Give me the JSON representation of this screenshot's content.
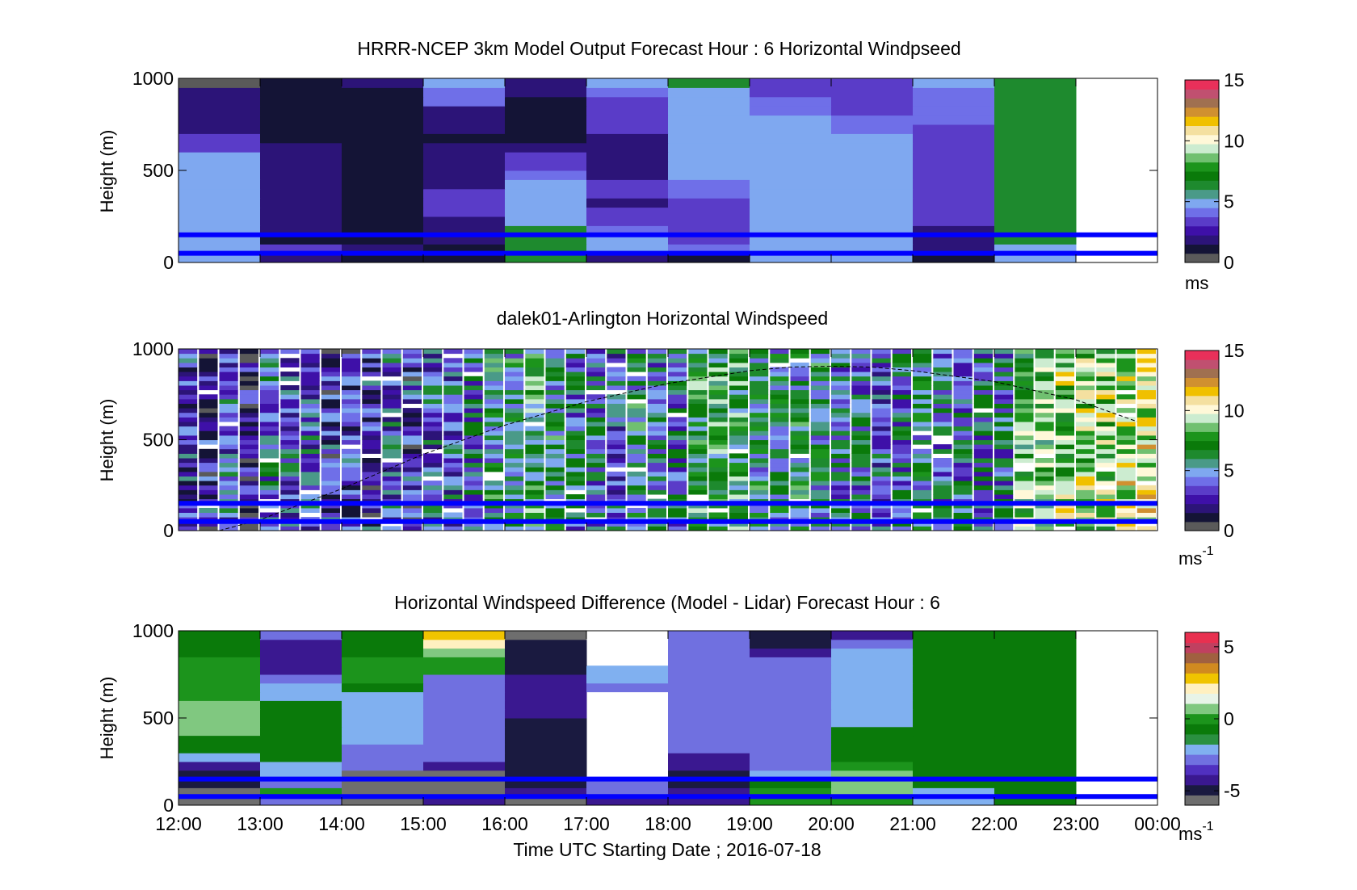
{
  "colors": {
    "speed_scale": [
      "#5a5a5a",
      "#141436",
      "#2c1478",
      "#3e10a8",
      "#5a3cc8",
      "#6f6fe8",
      "#7fa8f0",
      "#4a9a88",
      "#1e8a2e",
      "#0a7a0a",
      "#1c941c",
      "#70c070",
      "#ccecd0",
      "#fff8d8",
      "#f4e0a0",
      "#f0c000",
      "#d09030",
      "#a07050",
      "#c05070",
      "#e8305a"
    ],
    "diff_scale": [
      "#6e6e6e",
      "#1a1a40",
      "#3a1890",
      "#5030c0",
      "#7070e0",
      "#80b0f0",
      "#2a9040",
      "#0a7a0a",
      "#1c941c",
      "#80c880",
      "#e8f4e8",
      "#fff0c0",
      "#f0c400",
      "#d08a20",
      "#a06040",
      "#c04060",
      "#e83050"
    ],
    "overlay_line": "#0000ff"
  },
  "chart_data": [
    {
      "type": "heatmap",
      "title": "HRRR-NCEP 3km Model Output   Forecast Hour : 6 Horizontal Windpseed",
      "xlabel": "",
      "ylabel": "Height (m)",
      "x": [
        "12:00",
        "13:00",
        "14:00",
        "15:00",
        "16:00",
        "17:00",
        "18:00",
        "19:00",
        "20:00",
        "21:00",
        "22:00",
        "23:00"
      ],
      "xlim": [
        "12:00",
        "00:00"
      ],
      "ylim": [
        0,
        1000
      ],
      "yticks": [
        0,
        500,
        1000
      ],
      "y": [
        25,
        75,
        125,
        175,
        225,
        275,
        325,
        375,
        425,
        475,
        525,
        575,
        625,
        675,
        725,
        775,
        825,
        875,
        925,
        975
      ],
      "values": [
        [
          5,
          2,
          1,
          1,
          6,
          2,
          1,
          5,
          5,
          1,
          5,
          null
        ],
        [
          5,
          3,
          2,
          1,
          6,
          5,
          4,
          5,
          5,
          2,
          5,
          null
        ],
        [
          5,
          1,
          1,
          2,
          6,
          5,
          3,
          5,
          5,
          2,
          6,
          null
        ],
        [
          5,
          2,
          1,
          2,
          6,
          4,
          3,
          5,
          5,
          2,
          6,
          null
        ],
        [
          5,
          2,
          1,
          2,
          5,
          3,
          3,
          5,
          5,
          3,
          6,
          null
        ],
        [
          5,
          2,
          1,
          3,
          5,
          3,
          3,
          5,
          5,
          3,
          6,
          null
        ],
        [
          5,
          2,
          1,
          3,
          5,
          2,
          3,
          5,
          5,
          3,
          6,
          null
        ],
        [
          5,
          2,
          1,
          3,
          5,
          3,
          4,
          5,
          5,
          3,
          6,
          null
        ],
        [
          5,
          2,
          1,
          2,
          5,
          3,
          4,
          5,
          5,
          3,
          6,
          null
        ],
        [
          5,
          2,
          1,
          2,
          4,
          2,
          5,
          5,
          5,
          3,
          6,
          null
        ],
        [
          5,
          2,
          1,
          2,
          3,
          2,
          5,
          5,
          5,
          3,
          6,
          null
        ],
        [
          5,
          2,
          1,
          2,
          3,
          2,
          5,
          5,
          5,
          3,
          6,
          null
        ],
        [
          3,
          2,
          1,
          2,
          2,
          2,
          5,
          5,
          5,
          3,
          6,
          null
        ],
        [
          3,
          1,
          1,
          1,
          1,
          2,
          5,
          5,
          5,
          3,
          6,
          null
        ],
        [
          2,
          1,
          1,
          2,
          1,
          3,
          5,
          5,
          4,
          3,
          6,
          null
        ],
        [
          2,
          1,
          1,
          2,
          1,
          3,
          5,
          5,
          4,
          4,
          6,
          null
        ],
        [
          2,
          1,
          1,
          2,
          1,
          3,
          5,
          4,
          3,
          4,
          6,
          null
        ],
        [
          2,
          1,
          1,
          4,
          1,
          3,
          5,
          4,
          3,
          4,
          6,
          null
        ],
        [
          2,
          1,
          1,
          4,
          2,
          4,
          5,
          3,
          3,
          4,
          6,
          null
        ],
        [
          0,
          1,
          2,
          5,
          2,
          5,
          6,
          3,
          3,
          5,
          6,
          null
        ]
      ],
      "colorbar": {
        "ticks": [
          0,
          5,
          10,
          15
        ],
        "range": [
          0,
          15
        ],
        "units": "ms"
      },
      "lines": [
        {
          "name": "",
          "y": 150
        },
        {
          "name": "",
          "y": 50
        }
      ]
    },
    {
      "type": "heatmap",
      "title": "dalek01-Arlington  Horizontal Windspeed",
      "xlabel": "",
      "ylabel": "Height (m)",
      "xlim": [
        "12:00",
        "00:00"
      ],
      "ylim": [
        0,
        1000
      ],
      "yticks": [
        0,
        500,
        1000
      ],
      "colorbar": {
        "ticks": [
          0,
          5,
          10,
          15
        ],
        "range": [
          0,
          15
        ],
        "units": "ms",
        "units_exponent": "-1"
      },
      "columns": 48,
      "x_start": "12:00",
      "x_end": "23:45",
      "rows": 40,
      "column_mean_speed": [
        3,
        3,
        4,
        2,
        5,
        4,
        4,
        3,
        3,
        3,
        4,
        3,
        4,
        4,
        5,
        6,
        6,
        7,
        6,
        5,
        5,
        4,
        6,
        5,
        5,
        7,
        7,
        7,
        6,
        6,
        6,
        6,
        5,
        5,
        4,
        5,
        6,
        5,
        5,
        5,
        5,
        8,
        8,
        9,
        9,
        9,
        10,
        10
      ],
      "lines": [
        {
          "name": "",
          "y": 150
        },
        {
          "name": "",
          "y": 50
        }
      ],
      "dashed_curve": {
        "x": [
          "12:30",
          "13:00",
          "14:00",
          "15:00",
          "16:00",
          "17:00",
          "18:00",
          "19:00",
          "19:30",
          "20:00",
          "20:30",
          "21:00",
          "22:00",
          "23:00",
          "23:45"
        ],
        "y": [
          0,
          60,
          230,
          420,
          580,
          710,
          810,
          880,
          900,
          905,
          900,
          880,
          820,
          720,
          600
        ]
      }
    },
    {
      "type": "heatmap",
      "title": "Horizontal Windspeed Difference (Model - Lidar) Forecast Hour : 6",
      "xlabel": "Time UTC  Starting Date ; 2016-07-18",
      "ylabel": "Height (m)",
      "x": [
        "12:00",
        "13:00",
        "14:00",
        "15:00",
        "16:00",
        "17:00",
        "18:00",
        "19:00",
        "20:00",
        "21:00",
        "22:00",
        "23:00"
      ],
      "xticks": [
        "12:00",
        "13:00",
        "14:00",
        "15:00",
        "16:00",
        "17:00",
        "18:00",
        "19:00",
        "20:00",
        "21:00",
        "22:00",
        "23:00",
        "00:00"
      ],
      "xlim": [
        "12:00",
        "00:00"
      ],
      "ylim": [
        0,
        1000
      ],
      "yticks": [
        0,
        500,
        1000
      ],
      "y": [
        25,
        75,
        125,
        175,
        225,
        275,
        325,
        375,
        425,
        475,
        525,
        575,
        625,
        675,
        725,
        775,
        825,
        875,
        925,
        975
      ],
      "values": [
        [
          -6,
          -3,
          -6,
          -4,
          -6,
          -4,
          -4,
          0,
          0,
          -2,
          -1,
          null
        ],
        [
          -6,
          0,
          -6,
          -6,
          -4,
          -3,
          -4,
          0,
          1,
          -2,
          -1,
          null
        ],
        [
          -5,
          -3,
          -6,
          -6,
          -5,
          -3,
          -5,
          -1,
          1,
          -1,
          -1,
          null
        ],
        [
          -5,
          -2,
          -6,
          -6,
          -5,
          null,
          -5,
          -2,
          1,
          -1,
          -1,
          null
        ],
        [
          -4,
          -2,
          -3,
          -4,
          -5,
          null,
          -4,
          -3,
          0,
          -1,
          -1,
          null
        ],
        [
          -2,
          -1,
          -3,
          -3,
          -5,
          null,
          -4,
          -3,
          -1,
          -1,
          -1,
          null
        ],
        [
          -1,
          -1,
          -3,
          -3,
          -5,
          null,
          -3,
          -3,
          -1,
          -1,
          -1,
          null
        ],
        [
          -1,
          -1,
          -2,
          -3,
          -5,
          null,
          -3,
          -3,
          -1,
          -1,
          -1,
          null
        ],
        [
          1,
          -1,
          -2,
          -3,
          -5,
          null,
          -3,
          -3,
          -1,
          -1,
          -1,
          null
        ],
        [
          1,
          -1,
          -2,
          -3,
          -5,
          null,
          -3,
          -3,
          -2,
          -1,
          -1,
          null
        ],
        [
          1,
          -1,
          -2,
          -3,
          -4,
          null,
          -3,
          -3,
          -2,
          -1,
          -1,
          null
        ],
        [
          1,
          -1,
          -2,
          -3,
          -4,
          null,
          -3,
          -3,
          -2,
          -1,
          -1,
          null
        ],
        [
          0,
          -2,
          -2,
          -3,
          -4,
          null,
          -3,
          -3,
          -2,
          -1,
          -1,
          null
        ],
        [
          0,
          -2,
          -1,
          -3,
          -4,
          -3,
          -3,
          -3,
          -2,
          -1,
          -1,
          null
        ],
        [
          0,
          -3,
          0,
          -3,
          -4,
          -2,
          -3,
          -3,
          -2,
          -1,
          -1,
          null
        ],
        [
          0,
          -4,
          0,
          0,
          -5,
          -2,
          -3,
          -3,
          -2,
          -1,
          -1,
          null
        ],
        [
          0,
          -4,
          0,
          0,
          -5,
          null,
          -3,
          -3,
          -2,
          -1,
          -1,
          null
        ],
        [
          -1,
          -4,
          -1,
          1,
          -5,
          null,
          -3,
          -4,
          -2,
          -1,
          -1,
          null
        ],
        [
          -1,
          -4,
          -1,
          2,
          -5,
          null,
          -3,
          -5,
          -3,
          -1,
          -1,
          null
        ],
        [
          -1,
          -3,
          -1,
          3,
          -6,
          null,
          -3,
          -5,
          -4,
          -1,
          -1,
          null
        ]
      ],
      "colorbar": {
        "ticks": [
          -5,
          0,
          5
        ],
        "range": [
          -6,
          6
        ],
        "units": "ms",
        "units_exponent": "-1"
      },
      "lines": [
        {
          "name": "",
          "y": 150
        },
        {
          "name": "",
          "y": 50
        }
      ]
    }
  ]
}
